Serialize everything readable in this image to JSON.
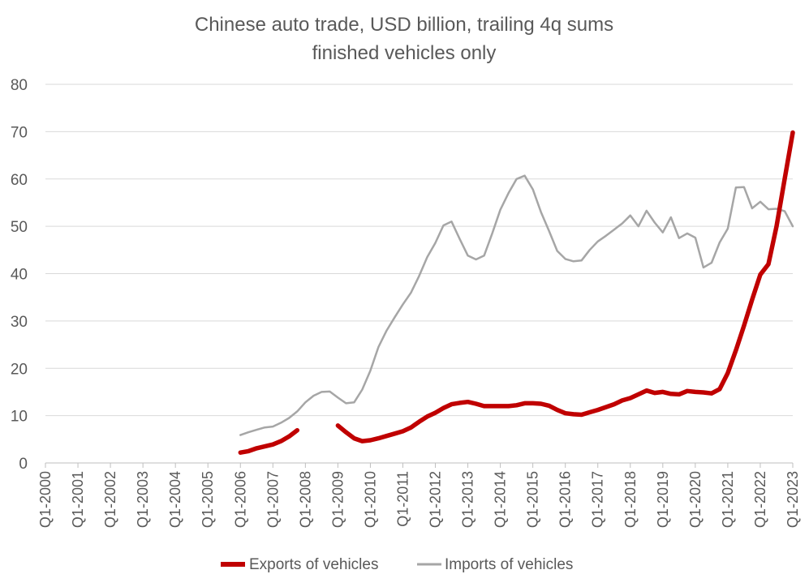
{
  "chart_data": {
    "type": "line",
    "title": "Chinese auto trade, USD billion, trailing 4q sums",
    "subtitle": "finished vehicles only",
    "xlabel": "",
    "ylabel": "",
    "ylim": [
      0,
      80
    ],
    "y_ticks": [
      0,
      10,
      20,
      30,
      40,
      50,
      60,
      70,
      80
    ],
    "x_tick_labels": [
      "Q1-2000",
      "Q1-2001",
      "Q1-2002",
      "Q1-2003",
      "Q1-2004",
      "Q1-2005",
      "Q1-2006",
      "Q1-2007",
      "Q1-2008",
      "Q1-2009",
      "Q1-2010",
      "Q1-2011",
      "Q1-2012",
      "Q1-2013",
      "Q1-2014",
      "Q1-2015",
      "Q1-2016",
      "Q1-2017",
      "Q1-2018",
      "Q1-2019",
      "Q1-2020",
      "Q1-2021",
      "Q1-2022",
      "Q1-2023"
    ],
    "grid": "horizontal",
    "legend_position": "bottom",
    "series": [
      {
        "name": "Exports of vehicles",
        "color": "#c00000",
        "points": [
          [
            "Q1-2006",
            2.2
          ],
          [
            "Q2-2006",
            2.5
          ],
          [
            "Q3-2006",
            3.1
          ],
          [
            "Q4-2006",
            3.5
          ],
          [
            "Q1-2007",
            3.9
          ],
          [
            "Q2-2007",
            4.6
          ],
          [
            "Q3-2007",
            5.6
          ],
          [
            "Q4-2007",
            6.9
          ],
          [
            "Q1-2009",
            7.9
          ],
          [
            "Q2-2009",
            6.5
          ],
          [
            "Q3-2009",
            5.2
          ],
          [
            "Q4-2009",
            4.6
          ],
          [
            "Q1-2010",
            4.8
          ],
          [
            "Q2-2010",
            5.2
          ],
          [
            "Q3-2010",
            5.7
          ],
          [
            "Q4-2010",
            6.2
          ],
          [
            "Q1-2011",
            6.7
          ],
          [
            "Q2-2011",
            7.5
          ],
          [
            "Q3-2011",
            8.7
          ],
          [
            "Q4-2011",
            9.8
          ],
          [
            "Q1-2012",
            10.6
          ],
          [
            "Q2-2012",
            11.6
          ],
          [
            "Q3-2012",
            12.4
          ],
          [
            "Q4-2012",
            12.7
          ],
          [
            "Q1-2013",
            12.9
          ],
          [
            "Q2-2013",
            12.5
          ],
          [
            "Q3-2013",
            12.0
          ],
          [
            "Q4-2013",
            12.0
          ],
          [
            "Q1-2014",
            12.0
          ],
          [
            "Q2-2014",
            12.0
          ],
          [
            "Q3-2014",
            12.2
          ],
          [
            "Q4-2014",
            12.6
          ],
          [
            "Q1-2015",
            12.6
          ],
          [
            "Q2-2015",
            12.5
          ],
          [
            "Q3-2015",
            12.1
          ],
          [
            "Q4-2015",
            11.2
          ],
          [
            "Q1-2016",
            10.5
          ],
          [
            "Q2-2016",
            10.3
          ],
          [
            "Q3-2016",
            10.2
          ],
          [
            "Q4-2016",
            10.7
          ],
          [
            "Q1-2017",
            11.2
          ],
          [
            "Q2-2017",
            11.8
          ],
          [
            "Q3-2017",
            12.4
          ],
          [
            "Q4-2017",
            13.2
          ],
          [
            "Q1-2018",
            13.7
          ],
          [
            "Q2-2018",
            14.5
          ],
          [
            "Q3-2018",
            15.3
          ],
          [
            "Q4-2018",
            14.8
          ],
          [
            "Q1-2019",
            15.0
          ],
          [
            "Q2-2019",
            14.6
          ],
          [
            "Q3-2019",
            14.5
          ],
          [
            "Q4-2019",
            15.2
          ],
          [
            "Q1-2020",
            15.0
          ],
          [
            "Q2-2020",
            14.9
          ],
          [
            "Q3-2020",
            14.7
          ],
          [
            "Q4-2020",
            15.6
          ],
          [
            "Q1-2021",
            19.0
          ],
          [
            "Q2-2021",
            23.8
          ],
          [
            "Q3-2021",
            29.0
          ],
          [
            "Q4-2021",
            34.5
          ],
          [
            "Q1-2022",
            39.8
          ],
          [
            "Q2-2022",
            42.0
          ],
          [
            "Q3-2022",
            50.0
          ],
          [
            "Q4-2022",
            60.0
          ],
          [
            "Q1-2023",
            69.8
          ]
        ]
      },
      {
        "name": "Imports of vehicles",
        "color": "#a6a6a6",
        "points": [
          [
            "Q1-2006",
            5.9
          ],
          [
            "Q2-2006",
            6.5
          ],
          [
            "Q3-2006",
            7.0
          ],
          [
            "Q4-2006",
            7.5
          ],
          [
            "Q1-2007",
            7.7
          ],
          [
            "Q2-2007",
            8.5
          ],
          [
            "Q3-2007",
            9.5
          ],
          [
            "Q4-2007",
            10.9
          ],
          [
            "Q1-2008",
            12.8
          ],
          [
            "Q2-2008",
            14.2
          ],
          [
            "Q3-2008",
            15.0
          ],
          [
            "Q4-2008",
            15.1
          ],
          [
            "Q1-2009",
            13.8
          ],
          [
            "Q2-2009",
            12.6
          ],
          [
            "Q3-2009",
            12.8
          ],
          [
            "Q4-2009",
            15.5
          ],
          [
            "Q1-2010",
            19.5
          ],
          [
            "Q2-2010",
            24.5
          ],
          [
            "Q3-2010",
            28.0
          ],
          [
            "Q4-2010",
            30.8
          ],
          [
            "Q1-2011",
            33.5
          ],
          [
            "Q2-2011",
            36.0
          ],
          [
            "Q3-2011",
            39.5
          ],
          [
            "Q4-2011",
            43.5
          ],
          [
            "Q1-2012",
            46.5
          ],
          [
            "Q2-2012",
            50.2
          ],
          [
            "Q3-2012",
            51.0
          ],
          [
            "Q4-2012",
            47.3
          ],
          [
            "Q1-2013",
            43.8
          ],
          [
            "Q2-2013",
            43.0
          ],
          [
            "Q3-2013",
            43.8
          ],
          [
            "Q4-2013",
            48.5
          ],
          [
            "Q1-2014",
            53.5
          ],
          [
            "Q2-2014",
            57.0
          ],
          [
            "Q3-2014",
            60.0
          ],
          [
            "Q4-2014",
            60.7
          ],
          [
            "Q1-2015",
            57.8
          ],
          [
            "Q2-2015",
            53.0
          ],
          [
            "Q3-2015",
            49.0
          ],
          [
            "Q4-2015",
            44.8
          ],
          [
            "Q1-2016",
            43.1
          ],
          [
            "Q2-2016",
            42.6
          ],
          [
            "Q3-2016",
            42.8
          ],
          [
            "Q4-2016",
            45.0
          ],
          [
            "Q1-2017",
            46.8
          ],
          [
            "Q2-2017",
            48.0
          ],
          [
            "Q3-2017",
            49.3
          ],
          [
            "Q4-2017",
            50.6
          ],
          [
            "Q1-2018",
            52.3
          ],
          [
            "Q2-2018",
            50.0
          ],
          [
            "Q3-2018",
            53.3
          ],
          [
            "Q4-2018",
            50.8
          ],
          [
            "Q1-2019",
            48.7
          ],
          [
            "Q2-2019",
            51.9
          ],
          [
            "Q3-2019",
            47.5
          ],
          [
            "Q4-2019",
            48.5
          ],
          [
            "Q1-2020",
            47.6
          ],
          [
            "Q2-2020",
            41.3
          ],
          [
            "Q3-2020",
            42.3
          ],
          [
            "Q4-2020",
            46.6
          ],
          [
            "Q1-2021",
            49.5
          ],
          [
            "Q2-2021",
            58.2
          ],
          [
            "Q3-2021",
            58.3
          ],
          [
            "Q4-2021",
            53.8
          ],
          [
            "Q1-2022",
            55.2
          ],
          [
            "Q2-2022",
            53.6
          ],
          [
            "Q3-2022",
            53.7
          ],
          [
            "Q4-2022",
            53.2
          ],
          [
            "Q1-2023",
            50.0
          ]
        ]
      }
    ]
  }
}
